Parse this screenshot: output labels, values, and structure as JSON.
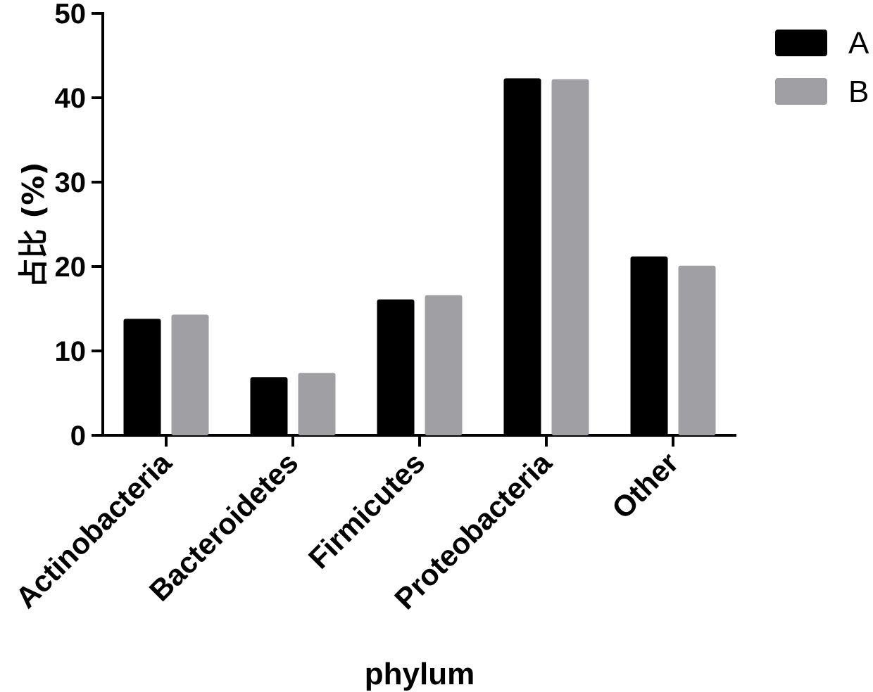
{
  "chart_data": {
    "type": "bar",
    "categories": [
      "Actinobacteria",
      "Bacteroidetes",
      "Firmicutes",
      "Proteobacteria",
      "Other"
    ],
    "series": [
      {
        "name": "A",
        "color": "#000000",
        "values": [
          13.8,
          6.9,
          16.1,
          42.3,
          21.2
        ]
      },
      {
        "name": "B",
        "color": "#a0a0a4",
        "values": [
          14.3,
          7.4,
          16.6,
          42.2,
          20.1
        ]
      }
    ],
    "xlabel": "phylum",
    "ylabel": "占比 (%)",
    "ylim": [
      0,
      50
    ],
    "yticks": [
      "0",
      "10",
      "20",
      "30",
      "40",
      "50"
    ],
    "grid": false,
    "legend_position": "top-right"
  }
}
